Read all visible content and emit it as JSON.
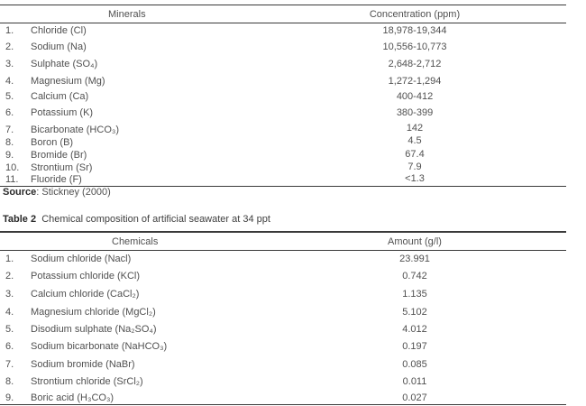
{
  "table1": {
    "header": {
      "left": "Minerals",
      "right": "Concentration (ppm)"
    },
    "rows": [
      {
        "num": "1.",
        "name": "Chloride (Cl)",
        "value": "18,978-19,344"
      },
      {
        "num": "2.",
        "name": "Sodium (Na)",
        "value": "10,556-10,773"
      },
      {
        "num": "3.",
        "name": "Sulphate (SO₄)",
        "value": "2,648-2,712"
      },
      {
        "num": "4.",
        "name": "Magnesium (Mg)",
        "value": "1,272-1,294"
      },
      {
        "num": "5.",
        "name": "Calcium (Ca)",
        "value": "400-412"
      },
      {
        "num": "6.",
        "name": "Potassium (K)",
        "value": "380-399"
      },
      {
        "num": "7.",
        "name": "Bicarbonate (HCO₃)",
        "value": "142"
      },
      {
        "num": "8.",
        "name": "Boron (B)",
        "value": "4.5"
      },
      {
        "num": "9.",
        "name": "Bromide (Br)",
        "value": "67.4"
      },
      {
        "num": "10.",
        "name": "Strontium (Sr)",
        "value": "7.9"
      },
      {
        "num": "11.",
        "name": "Fluoride (F)",
        "value": "<1.3"
      }
    ],
    "source_label": "Source",
    "source_text": ": Stickney (2000)"
  },
  "table2": {
    "caption_label": "Table 2",
    "caption_text": "Chemical composition of artificial seawater at 34 ppt",
    "header": {
      "left": "Chemicals",
      "right": "Amount (g/l)"
    },
    "rows": [
      {
        "num": "1.",
        "name": "Sodium chloride (Nacl)",
        "value": "23.991"
      },
      {
        "num": "2.",
        "name": "Potassium chloride (KCl)",
        "value": "0.742"
      },
      {
        "num": "3.",
        "name": "Calcium chloride (CaCl₂)",
        "value": "1.135"
      },
      {
        "num": "4.",
        "name": "Magnesium chloride (MgCl₂)",
        "value": "5.102"
      },
      {
        "num": "5.",
        "name": "Disodium sulphate (Na₂SO₄)",
        "value": "4.012"
      },
      {
        "num": "6.",
        "name": "Sodium bicarbonate (NaHCO₃)",
        "value": "0.197"
      },
      {
        "num": "7.",
        "name": "Sodium bromide (NaBr)",
        "value": "0.085"
      },
      {
        "num": "8.",
        "name": "Strontium chloride (SrCl₂)",
        "value": "0.011"
      },
      {
        "num": "9.",
        "name": "Boric acid (H₃CO₃)",
        "value": "0.027"
      }
    ]
  }
}
